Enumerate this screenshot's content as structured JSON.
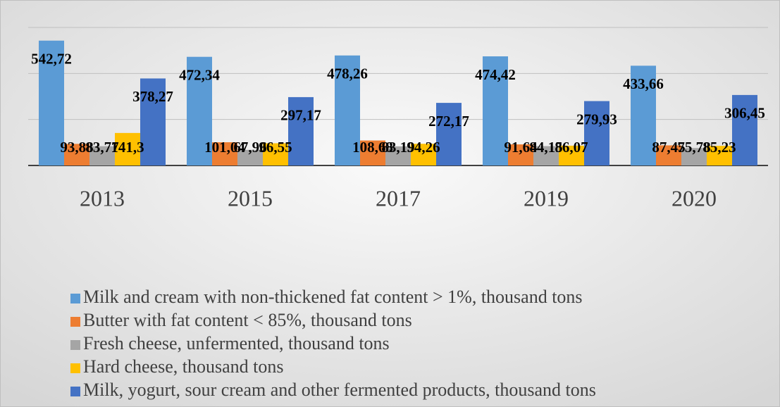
{
  "chart_data": {
    "type": "bar",
    "categories": [
      "2013",
      "2015",
      "2017",
      "2019",
      "2020"
    ],
    "series": [
      {
        "name": "Milk and cream with non-thickened fat content > 1%, thousand tons",
        "color": "#5b9bd5",
        "values": [
          542.72,
          472.34,
          478.26,
          474.42,
          433.66
        ],
        "value_labels": [
          "542,72",
          "472,34",
          "478,26",
          "474,42",
          "433,66"
        ]
      },
      {
        "name": "Butter with fat content < 85%, thousand tons",
        "color": "#ed7d31",
        "values": [
          93.88,
          101.04,
          108.68,
          91.64,
          87.45
        ],
        "value_labels": [
          "93,88",
          "101,04",
          "108,68",
          "91,64",
          "87,45"
        ]
      },
      {
        "name": "Fresh cheese, unfermented, thousand tons",
        "color": "#a5a5a5",
        "values": [
          83.77,
          67.96,
          83.19,
          84.15,
          75.78
        ],
        "value_labels": [
          "83,77",
          "67,96",
          "83,19",
          "84,15",
          "75,78"
        ]
      },
      {
        "name": "Hard cheese, thousand tons",
        "color": "#ffc000",
        "values": [
          141.3,
          96.55,
          94.26,
          86.07,
          85.23
        ],
        "value_labels": [
          "141,3",
          "96,55",
          "94,26",
          "86,07",
          "85,23"
        ]
      },
      {
        "name": "Milk, yogurt, sour cream and other fermented products, thousand tons",
        "color": "#4472c4",
        "values": [
          378.27,
          297.17,
          272.17,
          279.93,
          306.45
        ],
        "value_labels": [
          "378,27",
          "297,17",
          "272,17",
          "279,93",
          "306,45"
        ]
      }
    ],
    "ylim": [
      0,
      600
    ],
    "yticks": [
      0,
      200,
      400,
      600
    ],
    "grid": true,
    "legend": "bottom"
  }
}
